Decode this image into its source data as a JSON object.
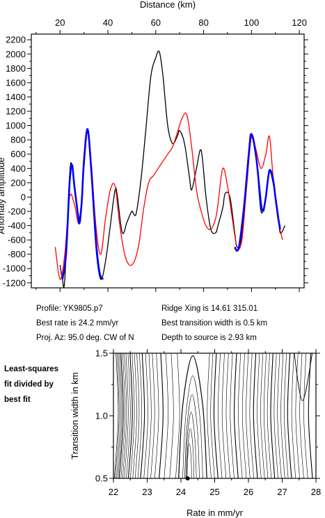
{
  "profile_chart": {
    "type": "line",
    "xlabel": "Distance (km)",
    "ylabel": "Anomaly amplitude",
    "xlim": [
      8,
      122
    ],
    "ylim": [
      -1270,
      2280
    ],
    "xticks": [
      20,
      40,
      60,
      80,
      100,
      120
    ],
    "yticks": [
      -1200,
      -1000,
      -800,
      -600,
      -400,
      -200,
      0,
      200,
      400,
      600,
      800,
      1000,
      1200,
      1400,
      1600,
      1800,
      2000,
      2200
    ],
    "series": [
      {
        "role": "observed",
        "color": "#000000",
        "x": [
          20,
          21,
          22,
          24,
          25,
          26,
          28,
          29,
          30,
          31.5,
          33,
          35,
          37,
          39,
          41,
          43,
          44,
          46,
          48,
          50,
          51,
          52,
          54,
          56,
          58,
          60,
          61.5,
          63,
          65,
          67,
          69,
          70,
          72,
          74,
          75,
          77,
          79,
          81,
          83,
          85,
          86,
          88,
          89,
          91,
          93,
          94,
          96,
          98,
          100,
          102,
          104,
          106,
          107.5,
          109,
          111,
          112,
          114
        ],
        "y": [
          -950,
          -1150,
          -1150,
          300,
          450,
          200,
          -350,
          -150,
          500,
          950,
          400,
          -700,
          -1150,
          -900,
          -400,
          100,
          0,
          -500,
          -350,
          -200,
          -250,
          -200,
          300,
          1000,
          1700,
          1950,
          2030,
          1700,
          1000,
          750,
          850,
          930,
          750,
          300,
          100,
          400,
          650,
          0,
          -450,
          -500,
          -400,
          -150,
          50,
          0,
          -500,
          -700,
          -550,
          200,
          850,
          550,
          -200,
          0,
          350,
          200,
          -200,
          -500,
          -400
        ]
      },
      {
        "role": "model",
        "color": "#ff0000",
        "x": [
          18,
          20,
          22,
          24,
          26,
          28,
          30,
          31.5,
          33,
          35,
          37,
          39,
          41,
          43,
          45,
          47,
          49,
          51,
          53,
          55,
          57,
          59,
          61,
          63,
          65,
          67,
          69,
          71,
          73,
          75,
          77,
          79,
          81,
          83,
          85,
          86,
          88,
          90,
          92,
          94,
          96,
          98,
          100,
          102,
          104,
          106,
          107.5,
          109,
          111,
          113
        ],
        "y": [
          -700,
          -1150,
          -800,
          0,
          -100,
          -350,
          400,
          950,
          500,
          -400,
          -800,
          -300,
          100,
          150,
          -400,
          -800,
          -950,
          -900,
          -650,
          -150,
          200,
          300,
          400,
          500,
          600,
          700,
          900,
          1100,
          1150,
          700,
          100,
          -200,
          -400,
          -450,
          -300,
          -100,
          400,
          150,
          -300,
          -700,
          -600,
          150,
          850,
          650,
          400,
          600,
          850,
          300,
          -300,
          -600
        ]
      },
      {
        "role": "fit-segments",
        "color": "#0000ff",
        "segments": [
          {
            "x": [
              21,
              22.5,
              24,
              25,
              26,
              28
            ],
            "y": [
              -1150,
              -800,
              200,
              450,
              150,
              -380
            ]
          },
          {
            "x": [
              28,
              29,
              30,
              31.5,
              33,
              35,
              36.5,
              38
            ],
            "y": [
              -380,
              -100,
              500,
              950,
              400,
              -600,
              -1050,
              -1150
            ]
          },
          {
            "x": [
              93,
              94,
              95,
              97,
              99,
              100,
              102,
              104,
              105
            ],
            "y": [
              -700,
              -750,
              -650,
              -100,
              650,
              880,
              550,
              -100,
              -200
            ]
          },
          {
            "x": [
              105,
              106,
              107.5,
              109,
              110,
              111,
              112
            ],
            "y": [
              -200,
              0,
              370,
              250,
              0,
              -250,
              -450
            ]
          }
        ]
      }
    ]
  },
  "info": {
    "profile": "Profile: YK9805.p7",
    "ridge_xing": "Ridge Xing is 14.61 315.01",
    "best_rate": "Best rate is 24.2 mm/yr",
    "best_transition": "Best transition width is 0.5 km",
    "proj_az": "Proj. Az: 95.0 deg. CW of N",
    "depth": "Depth to source is   2.93 km"
  },
  "side_note": [
    "Least-squares",
    "fit divided by",
    "best fit"
  ],
  "contour_chart": {
    "type": "contour",
    "xlabel": "Rate in mm/yr",
    "ylabel": "Transition width in km",
    "xlim": [
      22,
      28
    ],
    "ylim": [
      0.5,
      1.5
    ],
    "xticks": [
      22,
      23,
      24,
      25,
      26,
      27,
      28
    ],
    "yticks": [
      0.5,
      1.0,
      1.5
    ],
    "best_fit": {
      "x": 24.2,
      "y": 0.5
    }
  }
}
